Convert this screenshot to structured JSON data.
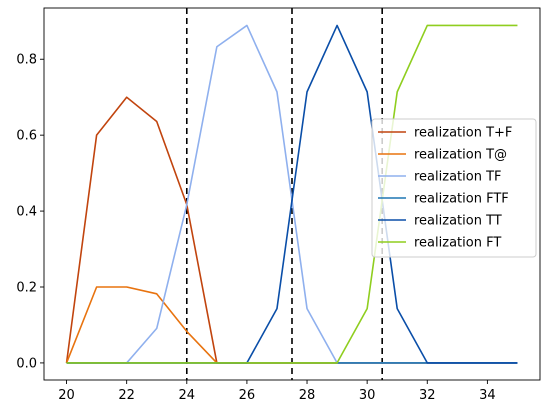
{
  "chart_data": {
    "type": "line",
    "title": "",
    "xlabel": "",
    "ylabel": "",
    "xlim": [
      19.25,
      35.75
    ],
    "ylim": [
      -0.045,
      0.935
    ],
    "xticks": [
      20,
      22,
      24,
      26,
      28,
      30,
      32,
      34
    ],
    "yticks": [
      0.0,
      0.2,
      0.4,
      0.6,
      0.8
    ],
    "xtick_labels": [
      "20",
      "22",
      "24",
      "26",
      "28",
      "30",
      "32",
      "34"
    ],
    "ytick_labels": [
      "0.0",
      "0.2",
      "0.4",
      "0.6",
      "0.8"
    ],
    "grid": false,
    "legend_position": "center-right",
    "vlines": [
      24,
      27.5,
      30.5
    ],
    "x": [
      20,
      21,
      22,
      23,
      24,
      25,
      26,
      27,
      28,
      29,
      30,
      31,
      32,
      33,
      34,
      35
    ],
    "series": [
      {
        "name": "realization T+F",
        "color": "#c1440e",
        "values": [
          0.0,
          0.6,
          0.7,
          0.636,
          0.417,
          0.0,
          0.0,
          0.0,
          0.0,
          0.0,
          0.0,
          0.0,
          0.0,
          0.0,
          0.0,
          0.0
        ]
      },
      {
        "name": "realization T@",
        "color": "#e8730f",
        "values": [
          0.0,
          0.2,
          0.2,
          0.182,
          0.083,
          0.0,
          0.0,
          0.0,
          0.0,
          0.0,
          0.0,
          0.0,
          0.0,
          0.0,
          0.0,
          0.0
        ]
      },
      {
        "name": "realization TF",
        "color": "#8fb0ee",
        "values": [
          0.0,
          0.0,
          0.0,
          0.091,
          0.417,
          0.833,
          0.889,
          0.714,
          0.143,
          0.0,
          0.0,
          0.0,
          0.0,
          0.0,
          0.0,
          0.0
        ]
      },
      {
        "name": "realization FTF",
        "color": "#1f77b4",
        "values": [
          0.0,
          0.0,
          0.0,
          0.0,
          0.0,
          0.0,
          0.0,
          0.0,
          0.0,
          0.0,
          0.0,
          0.0,
          0.0,
          0.0,
          0.0,
          0.0
        ]
      },
      {
        "name": "realization TT",
        "color": "#0a4ea8",
        "values": [
          0.0,
          0.0,
          0.0,
          0.0,
          0.0,
          0.0,
          0.0,
          0.143,
          0.714,
          0.889,
          0.714,
          0.143,
          0.0,
          0.0,
          0.0,
          0.0
        ]
      },
      {
        "name": "realization FT",
        "color": "#8fce1f",
        "values": [
          0.0,
          0.0,
          0.0,
          0.0,
          0.0,
          0.0,
          0.0,
          0.0,
          0.0,
          0.0,
          0.143,
          0.714,
          0.889,
          0.889,
          0.889,
          0.889
        ]
      }
    ]
  }
}
